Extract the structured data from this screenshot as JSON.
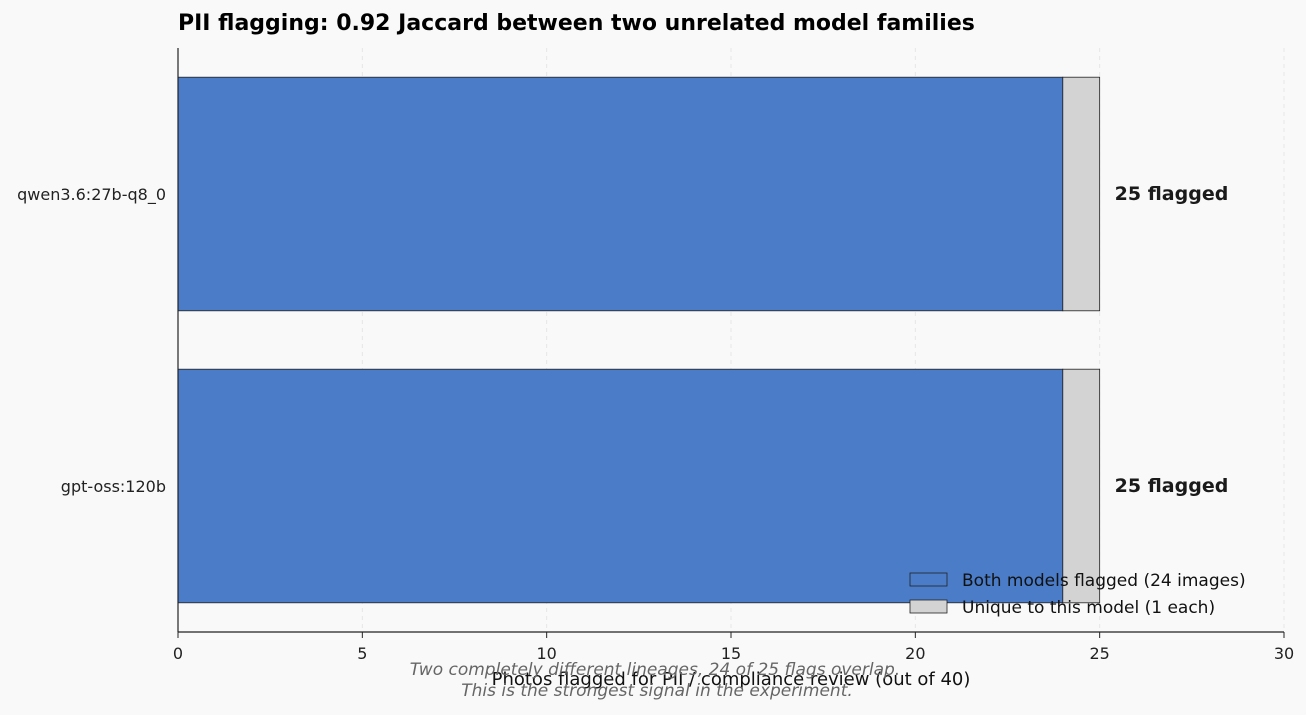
{
  "chart_data": {
    "type": "bar",
    "orientation": "horizontal",
    "stacked": true,
    "title": "PII flagging: 0.92 Jaccard between two unrelated model families",
    "xlabel": "Photos flagged for PII / compliance review (out of 40)",
    "ylabel": "",
    "xlim": [
      0,
      30
    ],
    "x_ticks": [
      0,
      5,
      10,
      15,
      20,
      25,
      30
    ],
    "grid": "vertical dashed",
    "categories": [
      "qwen3.6:27b-q8_0",
      "gpt-oss:120b"
    ],
    "series": [
      {
        "name": "Both models flagged (24 images)",
        "values": [
          24,
          24
        ],
        "color": "#4a7cc8"
      },
      {
        "name": "Unique to this model (1 each)",
        "values": [
          1,
          1
        ],
        "color": "#d3d3d3"
      }
    ],
    "value_labels": [
      "25 flagged",
      "25 flagged"
    ],
    "legend": {
      "placement": "lower-right"
    },
    "footnote": [
      "Two completely different lineages, 24 of 25 flags overlap.",
      "This is the strongest signal in the experiment."
    ]
  }
}
